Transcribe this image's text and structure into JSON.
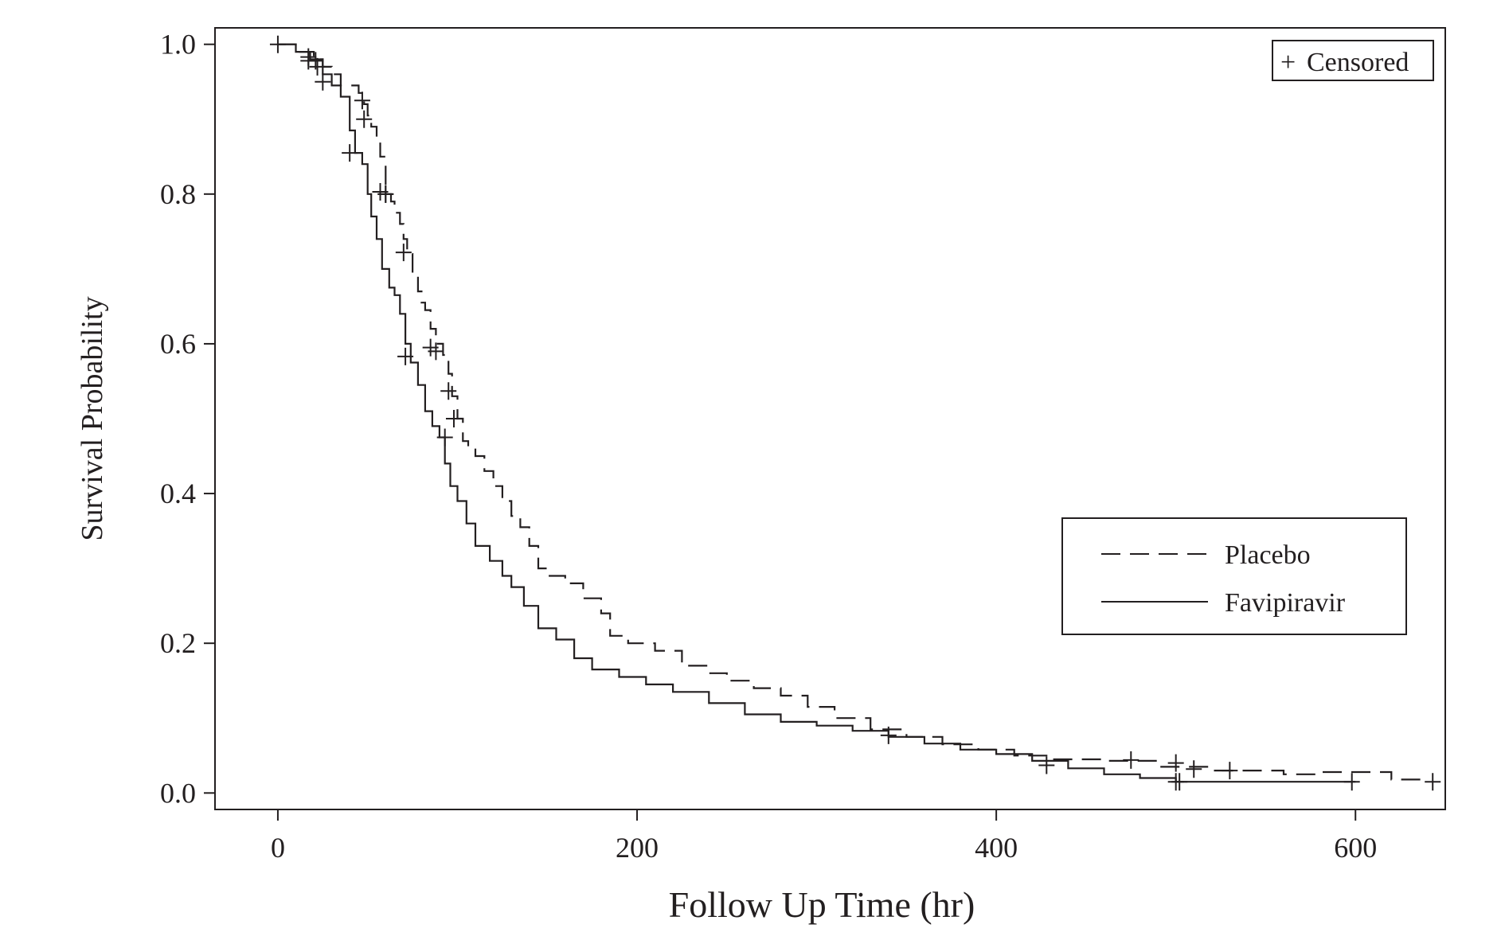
{
  "chart_data": {
    "type": "line",
    "subtype": "kaplan-meier step",
    "title": "",
    "xlabel": "Follow Up Time (hr)",
    "ylabel": "Survival Probability",
    "xlim": [
      -35,
      650
    ],
    "ylim": [
      -0.022,
      1.022
    ],
    "xticks": [
      0,
      200,
      400,
      600
    ],
    "yticks": [
      0.0,
      0.2,
      0.4,
      0.6,
      0.8,
      1.0
    ],
    "xtick_labels": [
      "0",
      "200",
      "400",
      "600"
    ],
    "ytick_labels": [
      "0.0",
      "0.2",
      "0.4",
      "0.6",
      "0.8",
      "1.0"
    ],
    "grid": false,
    "legend": {
      "placement": "right",
      "entries": [
        {
          "label": "Placebo",
          "style": "dashed"
        },
        {
          "label": "Favipiravir",
          "style": "solid"
        }
      ]
    },
    "censored_legend": {
      "symbol": "+",
      "label": "Censored",
      "placement": "top-right"
    },
    "series": [
      {
        "name": "Placebo",
        "style": "dashed",
        "color": "#231f20",
        "points": [
          [
            0,
            1.0
          ],
          [
            10,
            0.99
          ],
          [
            20,
            0.98
          ],
          [
            25,
            0.97
          ],
          [
            30,
            0.96
          ],
          [
            35,
            0.945
          ],
          [
            45,
            0.935
          ],
          [
            48,
            0.92
          ],
          [
            50,
            0.905
          ],
          [
            52,
            0.89
          ],
          [
            55,
            0.87
          ],
          [
            57,
            0.85
          ],
          [
            60,
            0.8
          ],
          [
            63,
            0.79
          ],
          [
            65,
            0.775
          ],
          [
            68,
            0.76
          ],
          [
            70,
            0.74
          ],
          [
            72,
            0.72
          ],
          [
            75,
            0.69
          ],
          [
            78,
            0.67
          ],
          [
            80,
            0.655
          ],
          [
            82,
            0.645
          ],
          [
            85,
            0.62
          ],
          [
            88,
            0.6
          ],
          [
            92,
            0.585
          ],
          [
            95,
            0.56
          ],
          [
            97,
            0.53
          ],
          [
            100,
            0.5
          ],
          [
            103,
            0.47
          ],
          [
            106,
            0.46
          ],
          [
            110,
            0.45
          ],
          [
            115,
            0.43
          ],
          [
            120,
            0.41
          ],
          [
            125,
            0.39
          ],
          [
            130,
            0.37
          ],
          [
            135,
            0.355
          ],
          [
            140,
            0.33
          ],
          [
            145,
            0.3
          ],
          [
            150,
            0.29
          ],
          [
            160,
            0.28
          ],
          [
            170,
            0.26
          ],
          [
            180,
            0.24
          ],
          [
            185,
            0.21
          ],
          [
            195,
            0.2
          ],
          [
            210,
            0.19
          ],
          [
            225,
            0.17
          ],
          [
            240,
            0.16
          ],
          [
            250,
            0.15
          ],
          [
            265,
            0.14
          ],
          [
            280,
            0.13
          ],
          [
            295,
            0.115
          ],
          [
            310,
            0.1
          ],
          [
            330,
            0.085
          ],
          [
            350,
            0.075
          ],
          [
            370,
            0.065
          ],
          [
            390,
            0.058
          ],
          [
            410,
            0.05
          ],
          [
            430,
            0.045
          ],
          [
            460,
            0.043
          ],
          [
            490,
            0.035
          ],
          [
            520,
            0.03
          ],
          [
            560,
            0.025
          ],
          [
            580,
            0.028
          ],
          [
            620,
            0.018
          ],
          [
            640,
            0.018
          ]
        ],
        "censored": [
          [
            0,
            1.0
          ],
          [
            17,
            0.978
          ],
          [
            22,
            0.97
          ],
          [
            47,
            0.925
          ],
          [
            48,
            0.9
          ],
          [
            57,
            0.803
          ],
          [
            60,
            0.8
          ],
          [
            70,
            0.722
          ],
          [
            85,
            0.595
          ],
          [
            88,
            0.59
          ],
          [
            95,
            0.537
          ],
          [
            98,
            0.5
          ],
          [
            340,
            0.077
          ],
          [
            475,
            0.044
          ],
          [
            500,
            0.04
          ],
          [
            510,
            0.032
          ],
          [
            530,
            0.03
          ],
          [
            643,
            0.015
          ]
        ]
      },
      {
        "name": "Favipiravir",
        "style": "solid",
        "color": "#231f20",
        "points": [
          [
            0,
            1.0
          ],
          [
            10,
            0.99
          ],
          [
            18,
            0.98
          ],
          [
            25,
            0.96
          ],
          [
            30,
            0.945
          ],
          [
            35,
            0.93
          ],
          [
            40,
            0.885
          ],
          [
            43,
            0.855
          ],
          [
            47,
            0.84
          ],
          [
            50,
            0.8
          ],
          [
            52,
            0.77
          ],
          [
            55,
            0.74
          ],
          [
            58,
            0.7
          ],
          [
            62,
            0.675
          ],
          [
            65,
            0.665
          ],
          [
            68,
            0.64
          ],
          [
            71,
            0.6
          ],
          [
            74,
            0.575
          ],
          [
            78,
            0.545
          ],
          [
            82,
            0.51
          ],
          [
            86,
            0.49
          ],
          [
            90,
            0.475
          ],
          [
            93,
            0.44
          ],
          [
            96,
            0.41
          ],
          [
            100,
            0.39
          ],
          [
            105,
            0.36
          ],
          [
            110,
            0.33
          ],
          [
            118,
            0.31
          ],
          [
            125,
            0.29
          ],
          [
            130,
            0.275
          ],
          [
            137,
            0.25
          ],
          [
            145,
            0.22
          ],
          [
            155,
            0.205
          ],
          [
            165,
            0.18
          ],
          [
            175,
            0.165
          ],
          [
            190,
            0.155
          ],
          [
            205,
            0.145
          ],
          [
            220,
            0.135
          ],
          [
            240,
            0.12
          ],
          [
            260,
            0.105
          ],
          [
            280,
            0.095
          ],
          [
            300,
            0.09
          ],
          [
            320,
            0.083
          ],
          [
            340,
            0.075
          ],
          [
            360,
            0.066
          ],
          [
            380,
            0.058
          ],
          [
            400,
            0.052
          ],
          [
            420,
            0.043
          ],
          [
            440,
            0.033
          ],
          [
            460,
            0.025
          ],
          [
            480,
            0.02
          ],
          [
            500,
            0.015
          ],
          [
            600,
            0.015
          ]
        ],
        "censored": [
          [
            17,
            0.983
          ],
          [
            21,
            0.978
          ],
          [
            25,
            0.95
          ],
          [
            40,
            0.855
          ],
          [
            60,
            0.8
          ],
          [
            71,
            0.583
          ],
          [
            93,
            0.475
          ],
          [
            428,
            0.037
          ],
          [
            500,
            0.015
          ],
          [
            502,
            0.015
          ],
          [
            598,
            0.015
          ]
        ]
      }
    ]
  }
}
